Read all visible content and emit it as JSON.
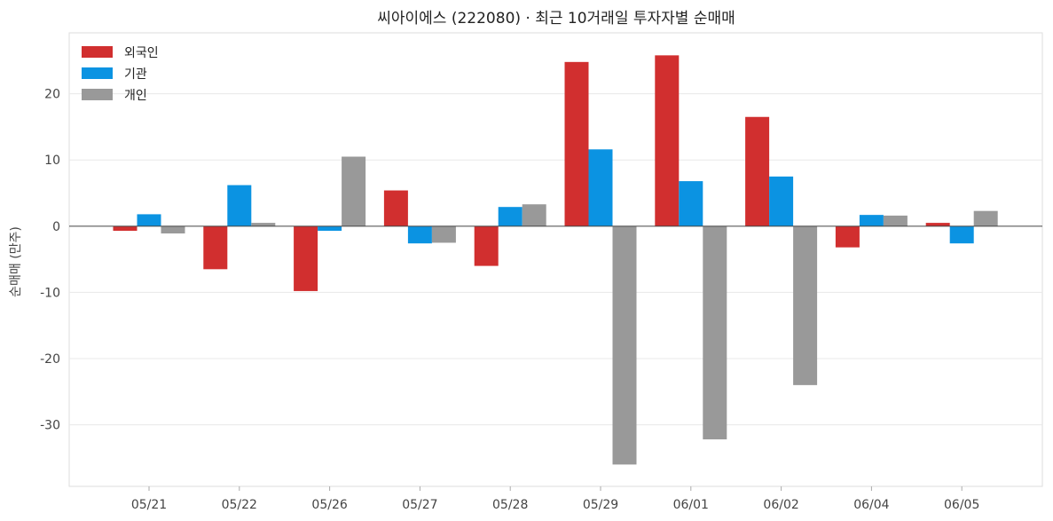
{
  "chart_data": {
    "type": "bar",
    "title": "씨아이에스 (222080) · 최근 10거래일 투자자별 순매매",
    "xlabel": "",
    "ylabel": "순매매 (만주)",
    "categories": [
      "05/21",
      "05/22",
      "05/26",
      "05/27",
      "05/28",
      "05/29",
      "06/01",
      "06/02",
      "06/04",
      "06/05"
    ],
    "series": [
      {
        "name": "외국인",
        "color": "#d12f2f",
        "values": [
          -0.7,
          -6.5,
          -9.8,
          5.4,
          -6.0,
          24.8,
          25.8,
          16.5,
          -3.2,
          0.5
        ]
      },
      {
        "name": "기관",
        "color": "#0b93e2",
        "values": [
          1.8,
          6.2,
          -0.7,
          -2.6,
          2.9,
          11.6,
          6.8,
          7.5,
          1.7,
          -2.6
        ]
      },
      {
        "name": "개인",
        "color": "#999999",
        "values": [
          -1.1,
          0.5,
          10.5,
          -2.5,
          3.3,
          -36.0,
          -32.2,
          -24.0,
          1.6,
          2.3
        ]
      }
    ],
    "yticks": [
      -30,
      -20,
      -10,
      0,
      10,
      20
    ],
    "ylim": [
      -39.3,
      29.2
    ],
    "grid": true,
    "legend_position": "top-left"
  }
}
